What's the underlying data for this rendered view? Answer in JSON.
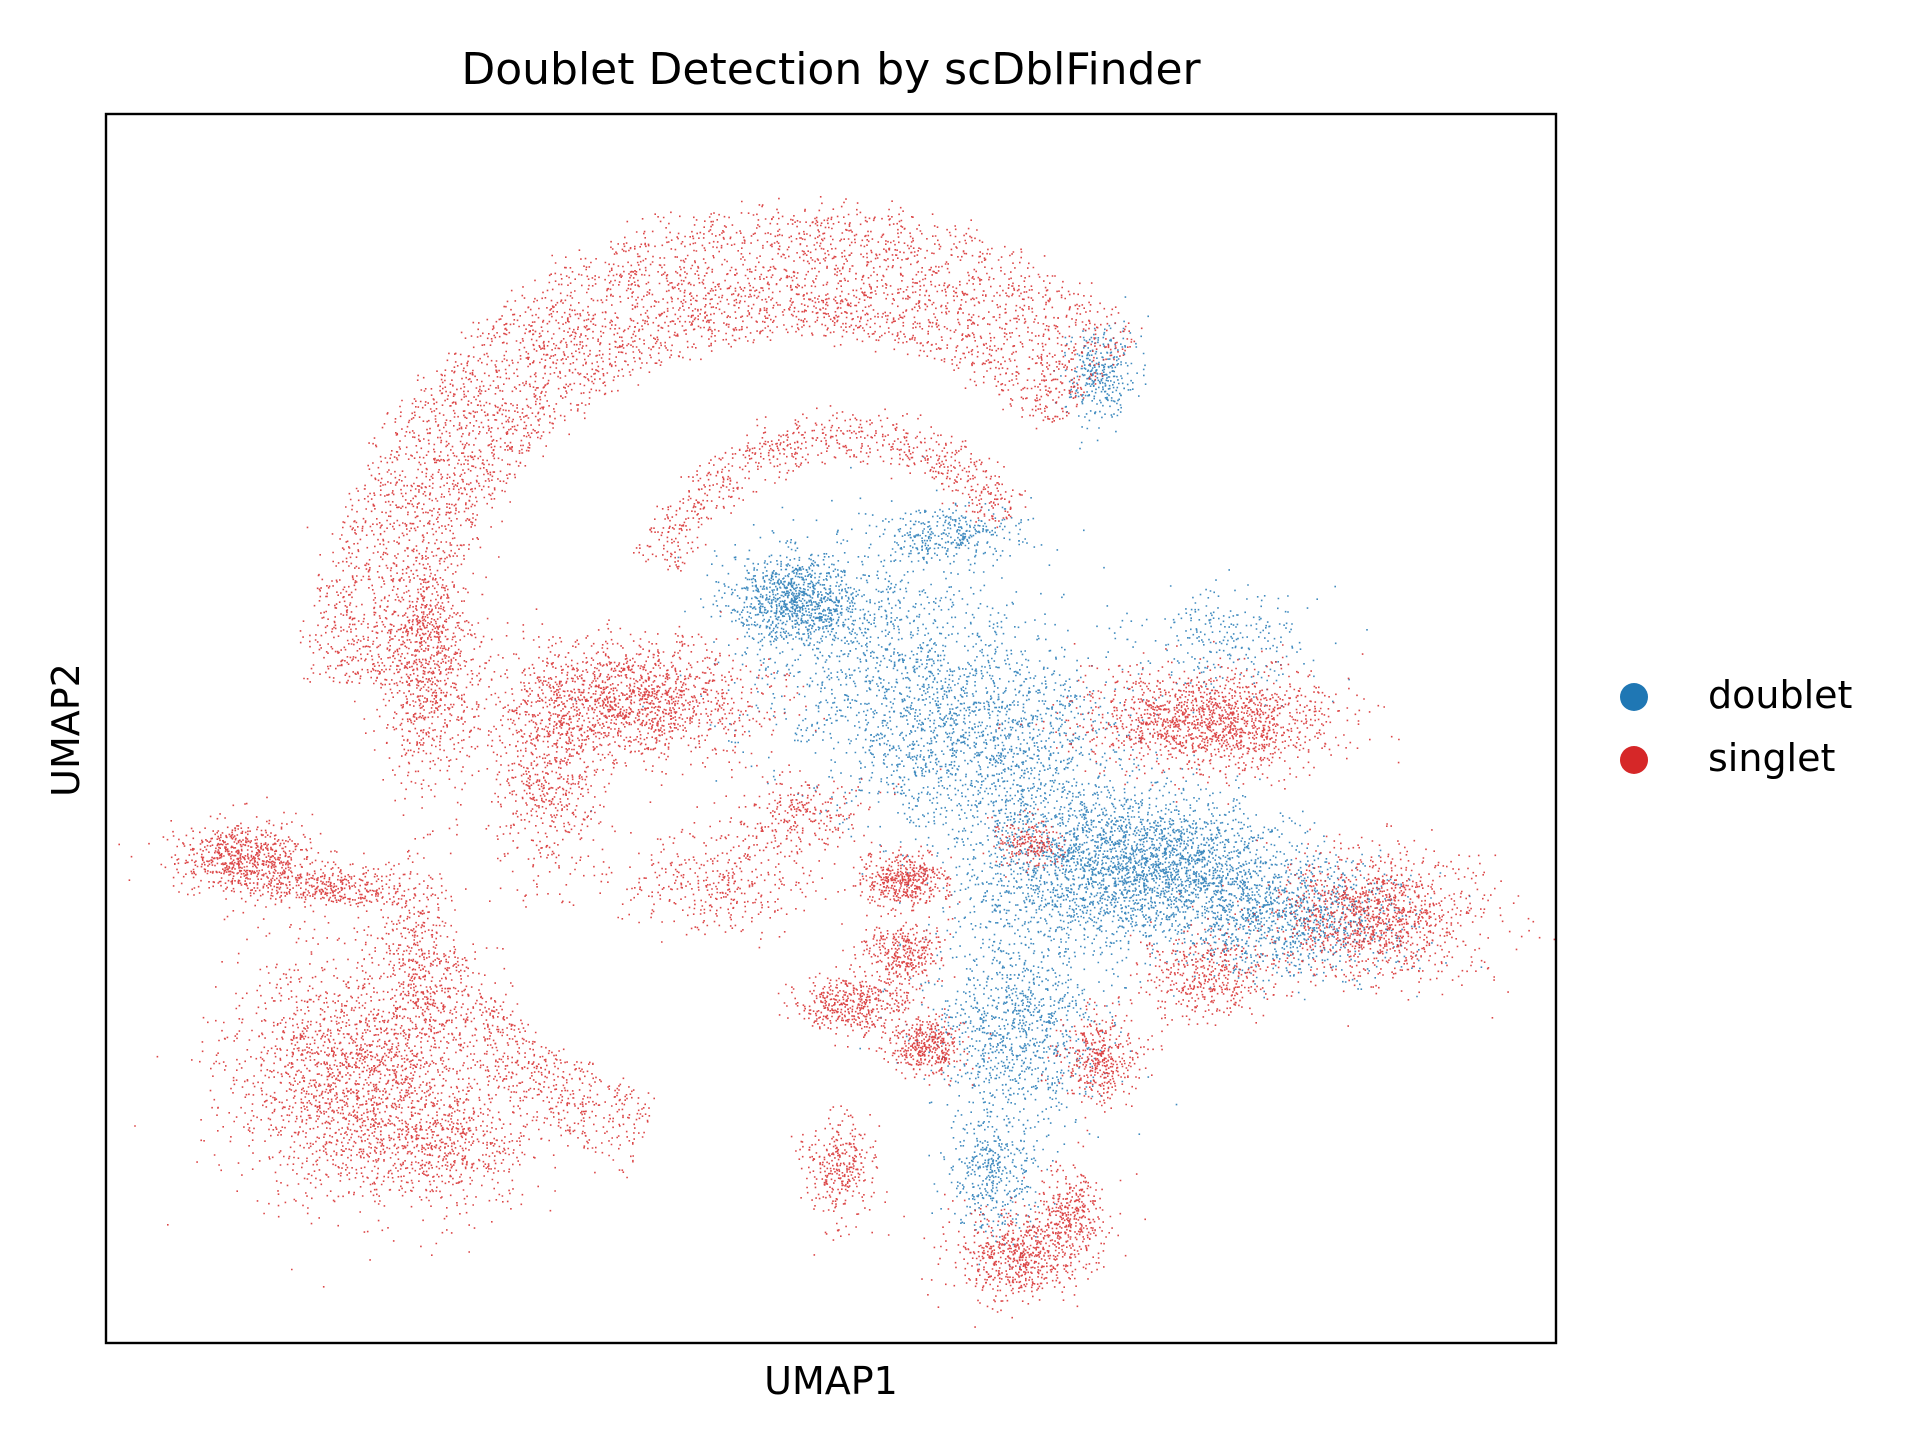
{
  "chart_data": {
    "type": "scatter",
    "title": "Doublet Detection by scDblFinder",
    "xlabel": "UMAP1",
    "ylabel": "UMAP2",
    "xlim": [
      0,
      20
    ],
    "ylim": [
      0,
      17
    ],
    "grid": false,
    "ticks": false,
    "legend": {
      "placement": "right-center-outside",
      "entries": [
        "doublet",
        "singlet"
      ]
    },
    "series": [
      {
        "name": "doublet",
        "color": "#1f77b4",
        "regions": [
          {
            "cx": 9.5,
            "cy": 10.3,
            "rx": 0.9,
            "ry": 0.6,
            "weight": 1.4
          },
          {
            "cx": 10.6,
            "cy": 9.6,
            "rx": 2.0,
            "ry": 1.6,
            "weight": 1.5
          },
          {
            "cx": 12.0,
            "cy": 8.4,
            "rx": 1.9,
            "ry": 1.3,
            "weight": 2.2
          },
          {
            "cx": 14.7,
            "cy": 6.6,
            "rx": 1.6,
            "ry": 0.9,
            "weight": 2.6
          },
          {
            "cx": 13.2,
            "cy": 6.6,
            "rx": 1.7,
            "ry": 1.3,
            "weight": 2.2
          },
          {
            "cx": 16.3,
            "cy": 5.9,
            "rx": 1.6,
            "ry": 0.8,
            "weight": 1.6
          },
          {
            "cx": 12.5,
            "cy": 4.3,
            "rx": 1.2,
            "ry": 1.3,
            "weight": 1.5
          },
          {
            "cx": 12.2,
            "cy": 2.3,
            "rx": 0.6,
            "ry": 0.9,
            "weight": 0.6
          },
          {
            "cx": 13.7,
            "cy": 13.4,
            "rx": 0.5,
            "ry": 0.7,
            "weight": 0.5
          },
          {
            "cx": 11.6,
            "cy": 11.2,
            "rx": 1.0,
            "ry": 0.4,
            "weight": 0.5
          },
          {
            "cx": 15.4,
            "cy": 9.7,
            "rx": 1.2,
            "ry": 0.7,
            "weight": 0.4
          }
        ]
      },
      {
        "name": "singlet",
        "color": "#d62728",
        "regions": [
          {
            "arc": true,
            "cx": 9.6,
            "cy": 8.9,
            "rin": 5.1,
            "rout": 6.8,
            "a0": 47,
            "a1": 178,
            "weight": 7.0
          },
          {
            "arc": true,
            "cx": 9.6,
            "cy": 8.9,
            "rin": 5.9,
            "rout": 6.8,
            "a0": 215,
            "a1": 250,
            "weight": 1.0
          },
          {
            "arc": true,
            "cx": 10.2,
            "cy": 9.8,
            "rin": 2.5,
            "rout": 3.0,
            "a0": 35,
            "a1": 160,
            "weight": 1.2
          },
          {
            "cx": 3.4,
            "cy": 3.7,
            "rx": 1.7,
            "ry": 1.7,
            "weight": 3.0
          },
          {
            "cx": 4.7,
            "cy": 2.8,
            "rx": 1.4,
            "ry": 0.9,
            "weight": 1.0
          },
          {
            "cx": 1.9,
            "cy": 6.7,
            "rx": 0.9,
            "ry": 0.5,
            "weight": 1.1
          },
          {
            "cx": 3.1,
            "cy": 6.3,
            "rx": 1.2,
            "ry": 0.3,
            "weight": 0.6
          },
          {
            "cx": 4.3,
            "cy": 5.4,
            "rx": 0.5,
            "ry": 1.2,
            "weight": 0.5
          },
          {
            "cx": 4.5,
            "cy": 9.2,
            "rx": 0.7,
            "ry": 1.5,
            "weight": 1.2
          },
          {
            "cx": 7.2,
            "cy": 8.9,
            "rx": 1.7,
            "ry": 0.8,
            "weight": 2.3
          },
          {
            "cx": 6.1,
            "cy": 7.8,
            "rx": 0.8,
            "ry": 1.4,
            "weight": 0.9
          },
          {
            "cx": 15.2,
            "cy": 8.6,
            "rx": 1.7,
            "ry": 0.7,
            "weight": 2.3
          },
          {
            "cx": 17.5,
            "cy": 5.9,
            "rx": 1.4,
            "ry": 0.9,
            "weight": 1.9
          },
          {
            "cx": 15.2,
            "cy": 5.1,
            "rx": 1.0,
            "ry": 0.6,
            "weight": 0.7
          },
          {
            "cx": 11.0,
            "cy": 6.4,
            "rx": 0.6,
            "ry": 0.4,
            "weight": 0.7
          },
          {
            "cx": 11.0,
            "cy": 5.4,
            "rx": 0.6,
            "ry": 0.4,
            "weight": 0.5
          },
          {
            "cx": 10.3,
            "cy": 4.7,
            "rx": 0.8,
            "ry": 0.4,
            "weight": 0.7
          },
          {
            "cx": 11.3,
            "cy": 4.1,
            "rx": 0.5,
            "ry": 0.4,
            "weight": 0.6
          },
          {
            "cx": 13.7,
            "cy": 3.9,
            "rx": 0.6,
            "ry": 0.6,
            "weight": 0.6
          },
          {
            "cx": 12.6,
            "cy": 1.2,
            "rx": 0.9,
            "ry": 0.6,
            "weight": 1.0
          },
          {
            "cx": 13.3,
            "cy": 1.8,
            "rx": 0.5,
            "ry": 0.6,
            "weight": 0.5
          },
          {
            "cx": 10.1,
            "cy": 2.4,
            "rx": 0.5,
            "ry": 0.7,
            "weight": 0.5
          },
          {
            "cx": 12.7,
            "cy": 6.9,
            "rx": 0.5,
            "ry": 0.3,
            "weight": 0.3
          },
          {
            "cx": 8.4,
            "cy": 6.4,
            "rx": 1.4,
            "ry": 0.7,
            "weight": 0.6
          },
          {
            "cx": 9.5,
            "cy": 7.3,
            "rx": 1.0,
            "ry": 0.5,
            "weight": 0.4
          }
        ]
      }
    ]
  }
}
